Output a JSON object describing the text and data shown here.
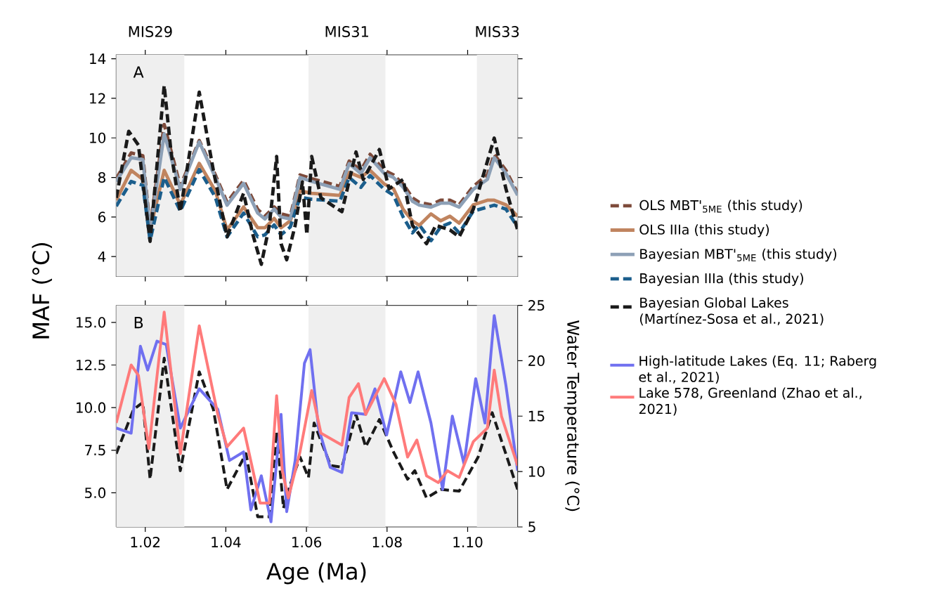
{
  "chart_data": [
    {
      "type": "line",
      "ylabel": "MAF (°C)",
      "annotations": [
        "A"
      ],
      "legend": "right",
      "marker": "none",
      "tick_labels": "y",
      "xlim": [
        1.0128,
        1.1124
      ],
      "ylim": [
        3.0,
        14.2
      ],
      "yticks": [
        4,
        6,
        8,
        10,
        12,
        14
      ],
      "xticks": [
        {
          "value": 1.02,
          "label": null
        },
        {
          "value": 1.04,
          "label": null
        },
        {
          "value": 1.06,
          "label": null
        },
        {
          "value": 1.08,
          "label": null
        },
        {
          "value": 1.1,
          "label": null
        }
      ],
      "bands": [
        {
          "axis": "x",
          "from": 1.0128,
          "to": 1.0297,
          "label": "MIS29",
          "color": "#efefef"
        },
        {
          "axis": "x",
          "from": 1.0605,
          "to": 1.0796,
          "label": "MIS31",
          "color": "#efefef"
        },
        {
          "axis": "x",
          "from": 1.1023,
          "to": 1.1124,
          "label": "MIS33",
          "color": "#efefef"
        }
      ],
      "x": [
        1.0128,
        1.0165,
        1.0194,
        1.0212,
        1.0247,
        1.0287,
        1.0334,
        1.0374,
        1.0403,
        1.0444,
        1.0479,
        1.0497,
        1.052,
        1.0537,
        1.056,
        1.0584,
        1.0613,
        1.0683,
        1.0706,
        1.0735,
        1.0758,
        1.0793,
        1.0816,
        1.084,
        1.0863,
        1.088,
        1.0909,
        1.0933,
        1.0956,
        1.0979,
        1.1014,
        1.1049,
        1.1066,
        1.1095,
        1.1124
      ],
      "series": [
        {
          "name": "OLS MBT'$_{5ME}$ (this study)",
          "color": "#7d4a3a",
          "line_style": "dashed",
          "values": [
            7.94,
            9.24,
            9.1,
            5.46,
            10.68,
            7.55,
            9.87,
            8.13,
            6.74,
            7.85,
            6.39,
            6.04,
            6.51,
            6.16,
            6.04,
            8.13,
            7.94,
            7.55,
            8.83,
            8.36,
            9.17,
            8.36,
            8.13,
            7.67,
            6.97,
            6.74,
            6.62,
            6.85,
            6.85,
            6.62,
            7.55,
            8.13,
            9.17,
            8.36,
            7.2
          ]
        },
        {
          "name": "OLS IIIa (this study)",
          "color": "#c0845f",
          "line_style": "solid",
          "values": [
            6.85,
            8.36,
            7.9,
            5.35,
            8.36,
            6.62,
            8.71,
            7.32,
            5.35,
            6.51,
            5.46,
            5.46,
            5.93,
            5.46,
            5.81,
            7.32,
            7.2,
            7.09,
            8.25,
            8.01,
            8.36,
            7.67,
            7.43,
            6.39,
            5.81,
            5.58,
            6.16,
            5.81,
            6.04,
            5.69,
            6.62,
            6.85,
            6.85,
            6.62,
            6.04
          ]
        },
        {
          "name": "Bayesian MBT'$_{5ME}$ (this study)",
          "color": "#8da0b6",
          "line_style": "solid",
          "values": [
            7.8,
            9.0,
            8.9,
            5.3,
            10.2,
            7.4,
            9.8,
            8.0,
            6.6,
            7.7,
            6.2,
            5.9,
            6.4,
            6.0,
            5.9,
            8.0,
            7.8,
            7.4,
            8.7,
            8.2,
            9.0,
            8.2,
            8.0,
            7.5,
            6.8,
            6.6,
            6.5,
            6.7,
            6.7,
            6.5,
            7.4,
            7.9,
            9.0,
            8.2,
            7.1
          ]
        },
        {
          "name": "Bayesian IIIa (this study)",
          "color": "#1b5e8c",
          "line_style": "dashed",
          "values": [
            6.55,
            7.8,
            7.6,
            4.8,
            8.0,
            6.3,
            8.4,
            7.0,
            5.0,
            6.2,
            5.0,
            5.1,
            5.6,
            5.1,
            5.5,
            7.0,
            6.9,
            6.8,
            8.0,
            7.5,
            8.1,
            7.4,
            7.1,
            6.0,
            5.2,
            5.6,
            4.8,
            5.5,
            5.7,
            5.2,
            6.3,
            6.5,
            6.6,
            6.4,
            5.5
          ]
        },
        {
          "name": "Bayesian Global Lakes (Martínez-Sosa et al., 2021)",
          "color": "#1a1a1a",
          "line_style": "dashed",
          "x": [
            1.0128,
            1.0159,
            1.0171,
            1.0183,
            1.0212,
            1.0247,
            1.0264,
            1.0287,
            1.0334,
            1.0369,
            1.0403,
            1.0444,
            1.0467,
            1.0488,
            1.0508,
            1.0526,
            1.0537,
            1.0551,
            1.0572,
            1.059,
            1.0601,
            1.0613,
            1.0636,
            1.0688,
            1.0723,
            1.0741,
            1.0781,
            1.0805,
            1.084,
            1.0863,
            1.0898,
            1.0921,
            1.0956,
            1.0979,
            1.1014,
            1.1066,
            1.1095,
            1.1124
          ],
          "values": [
            6.97,
            10.33,
            9.99,
            9.64,
            4.77,
            12.65,
            9.29,
            6.27,
            12.31,
            8.36,
            5.0,
            7.2,
            5.11,
            3.61,
            5.58,
            9.06,
            4.65,
            3.84,
            5.58,
            7.78,
            5.11,
            9.06,
            6.97,
            6.27,
            9.29,
            7.9,
            9.41,
            7.43,
            7.9,
            5.58,
            4.65,
            5.58,
            5.35,
            5.0,
            6.39,
            9.99,
            7.43,
            5.35
          ]
        }
      ]
    },
    {
      "type": "line",
      "xlabel": "Age (Ma)",
      "y2label": "Water Temperature (°C)",
      "annotations": [
        "B"
      ],
      "legend": "right",
      "marker": "none",
      "xlim": [
        1.0128,
        1.1124
      ],
      "ylim": [
        3.0,
        16.0
      ],
      "y2lim": [
        5,
        25
      ],
      "xticks": [
        {
          "value": 1.02,
          "label": "1.02"
        },
        {
          "value": 1.04,
          "label": "1.04"
        },
        {
          "value": 1.06,
          "label": "1.06"
        },
        {
          "value": 1.08,
          "label": "1.08"
        },
        {
          "value": 1.1,
          "label": "1.10"
        }
      ],
      "yticks": [
        {
          "value": 5,
          "label": "5.0"
        },
        {
          "value": 7.5,
          "label": "7.5"
        },
        {
          "value": 10,
          "label": "10.0"
        },
        {
          "value": 12.5,
          "label": "12.5"
        },
        {
          "value": 15,
          "label": "15.0"
        }
      ],
      "y2ticks": [
        5,
        10,
        15,
        20,
        25
      ],
      "bands": [
        {
          "axis": "x",
          "from": 1.0128,
          "to": 1.0297,
          "color": "#efefef"
        },
        {
          "axis": "x",
          "from": 1.0605,
          "to": 1.0796,
          "color": "#efefef"
        },
        {
          "axis": "x",
          "from": 1.1023,
          "to": 1.1124,
          "color": "#efefef"
        }
      ],
      "series": [
        {
          "color": "#1a1a1a",
          "line_style": "dashed",
          "x": [
            1.0128,
            1.0171,
            1.0194,
            1.0212,
            1.0247,
            1.0287,
            1.0334,
            1.0369,
            1.0403,
            1.045,
            1.0479,
            1.0508,
            1.0526,
            1.0543,
            1.056,
            1.0584,
            1.0605,
            1.0619,
            1.066,
            1.0688,
            1.0723,
            1.0747,
            1.0781,
            1.0816,
            1.0851,
            1.0869,
            1.0898,
            1.0933,
            1.0979,
            1.1026,
            1.1061,
            1.1124
          ],
          "values": [
            7.3,
            9.9,
            10.3,
            5.8,
            12.9,
            6.3,
            12.1,
            9.9,
            5.2,
            7.3,
            3.6,
            3.6,
            8.6,
            4.1,
            5.5,
            7.1,
            5.9,
            9.1,
            6.6,
            6.5,
            9.6,
            7.7,
            9.3,
            7.4,
            5.8,
            6.3,
            4.7,
            5.2,
            5.1,
            7.1,
            9.7,
            5.2
          ]
        },
        {
          "name": "High-latitude Lakes (Eq. 11; Raberg et al., 2021)",
          "color": "#7070f0",
          "line_style": "solid",
          "x": [
            1.0128,
            1.0165,
            1.0188,
            1.0206,
            1.0229,
            1.0252,
            1.0287,
            1.0334,
            1.038,
            1.0409,
            1.0444,
            1.0462,
            1.0488,
            1.0512,
            1.0537,
            1.0551,
            1.0572,
            1.0595,
            1.0609,
            1.063,
            1.0659,
            1.0688,
            1.0712,
            1.0747,
            1.077,
            1.0799,
            1.0834,
            1.0857,
            1.0877,
            1.0909,
            1.0938,
            1.0962,
            1.0991,
            1.102,
            1.1043,
            1.1066,
            1.1095,
            1.1124
          ],
          "values": [
            8.8,
            8.5,
            13.6,
            12.2,
            13.9,
            13.7,
            8.8,
            11.1,
            9.9,
            6.9,
            7.4,
            4.0,
            6.0,
            3.3,
            9.6,
            3.9,
            6.9,
            12.6,
            13.4,
            8.8,
            6.5,
            6.2,
            9.7,
            9.6,
            11.1,
            8.4,
            12.1,
            10.3,
            12.1,
            9.1,
            5.2,
            9.5,
            6.7,
            11.7,
            9.1,
            15.4,
            11.3,
            6.3
          ]
        },
        {
          "name": "Lake 578, Greenland (Zhao et al., 2021)",
          "color": "#ff7a7a",
          "line_style": "solid",
          "x": [
            1.0128,
            1.0165,
            1.0183,
            1.0209,
            1.0247,
            1.0287,
            1.0334,
            1.038,
            1.0403,
            1.0444,
            1.0485,
            1.0508,
            1.0526,
            1.054,
            1.0555,
            1.0584,
            1.0613,
            1.0636,
            1.0688,
            1.0706,
            1.0729,
            1.0747,
            1.0793,
            1.0822,
            1.0851,
            1.0874,
            1.0898,
            1.0927,
            1.095,
            1.0979,
            1.1014,
            1.1049,
            1.1066,
            1.1084,
            1.1124
          ],
          "values": [
            9.1,
            12.5,
            11.9,
            7.6,
            15.6,
            7.3,
            14.8,
            9.6,
            7.7,
            8.8,
            4.4,
            4.4,
            10.7,
            6.3,
            4.7,
            7.4,
            11.0,
            8.5,
            7.8,
            10.6,
            11.4,
            9.6,
            11.7,
            10.2,
            7.1,
            8.1,
            6.0,
            5.6,
            6.3,
            5.9,
            8.0,
            8.8,
            12.2,
            9.5,
            6.6
          ]
        }
      ]
    }
  ]
}
